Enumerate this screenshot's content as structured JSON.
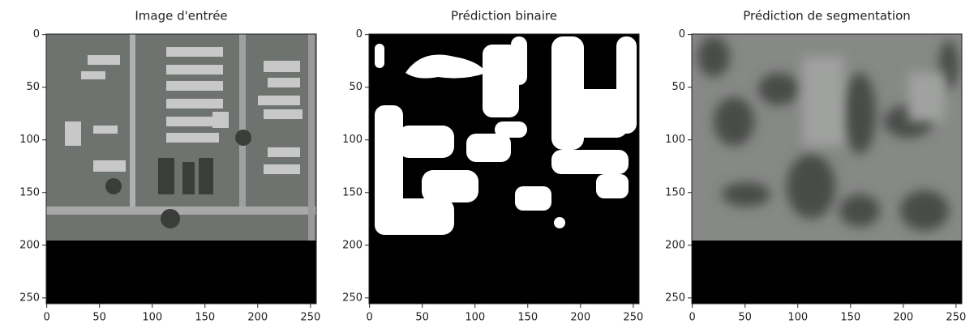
{
  "chart_data": [
    {
      "type": "image",
      "title": "Image d'entrée",
      "xlim": [
        -0.5,
        255.5
      ],
      "ylim": [
        255.5,
        -0.5
      ],
      "xticks": [
        0,
        50,
        100,
        150,
        200,
        250
      ],
      "yticks": [
        0,
        50,
        100,
        150,
        200,
        250
      ]
    },
    {
      "type": "image",
      "title": "Prédiction binaire",
      "xlim": [
        -0.5,
        255.5
      ],
      "ylim": [
        255.5,
        -0.5
      ],
      "xticks": [
        0,
        50,
        100,
        150,
        200,
        250
      ],
      "yticks": [
        0,
        50,
        100,
        150,
        200,
        250
      ]
    },
    {
      "type": "image",
      "title": "Prédiction de segmentation",
      "xlim": [
        -0.5,
        255.5
      ],
      "ylim": [
        255.5,
        -0.5
      ],
      "xticks": [
        0,
        50,
        100,
        150,
        200,
        250
      ],
      "yticks": [
        0,
        50,
        100,
        150,
        200,
        250
      ]
    }
  ]
}
